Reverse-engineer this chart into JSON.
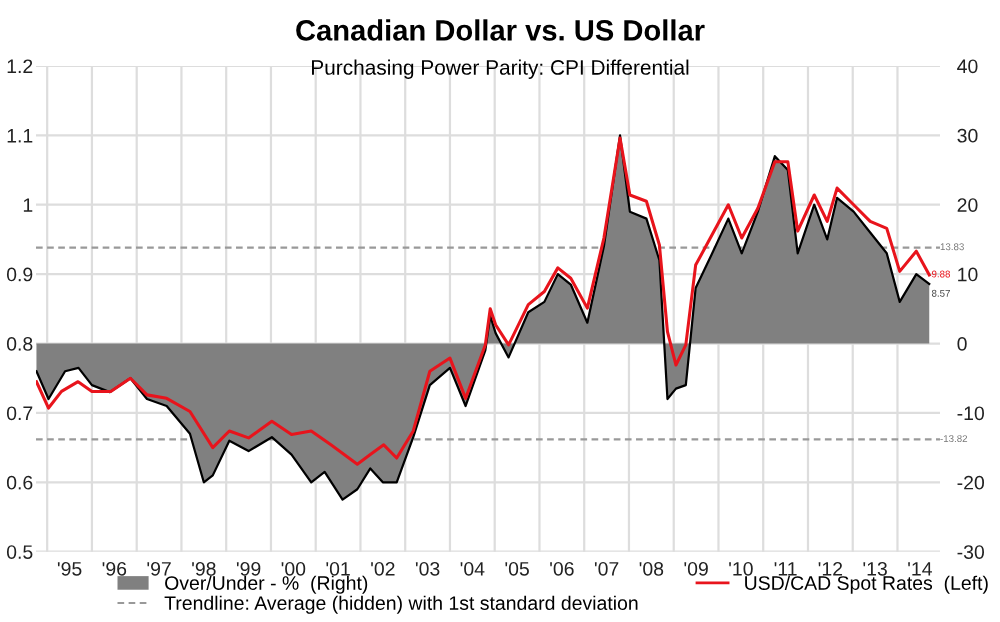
{
  "chart_data": {
    "type": "line",
    "title": "Canadian Dollar vs. US Dollar",
    "subtitle": "Purchasing Power Parity: CPI Differential",
    "series": [
      {
        "name": "Over/Under - %  (Right)",
        "type": "area",
        "axis": "y2",
        "color": "#808080",
        "x": [
          1994.26,
          1994.53,
          1994.9,
          1995.2,
          1995.5,
          1995.9,
          1996.36,
          1996.73,
          1997.17,
          1997.69,
          1998.0,
          1998.2,
          1998.57,
          1999.0,
          1999.52,
          1999.96,
          2000.4,
          2000.7,
          2001.1,
          2001.43,
          2001.72,
          2002.0,
          2002.31,
          2002.68,
          2003.05,
          2003.5,
          2003.85,
          2004.29,
          2004.4,
          2004.52,
          2004.81,
          2005.25,
          2005.61,
          2005.91,
          2006.2,
          2006.57,
          2006.94,
          2007.3,
          2007.52,
          2007.89,
          2008.18,
          2008.36,
          2008.55,
          2008.77,
          2008.99,
          2009.36,
          2009.72,
          2010.02,
          2010.38,
          2010.76,
          2011.05,
          2011.27,
          2011.64,
          2011.93,
          2012.15,
          2012.52,
          2012.89,
          2013.26,
          2013.55,
          2013.92,
          2014.21
        ],
        "values": [
          -4,
          -8,
          -4,
          -3.5,
          -6,
          -7,
          -5,
          -8,
          -9,
          -13,
          -20,
          -19,
          -14,
          -15.5,
          -13.5,
          -16,
          -20,
          -18.5,
          -22.5,
          -21,
          -18,
          -20,
          -20,
          -13.5,
          -6,
          -3.5,
          -9,
          -1,
          4,
          1.5,
          -2,
          4.5,
          6,
          10,
          8.5,
          3,
          14,
          30,
          19,
          18,
          12,
          -8,
          -6.5,
          -6,
          8,
          13,
          18,
          13,
          19,
          27,
          25,
          13,
          20,
          15,
          21,
          19,
          16,
          13,
          6,
          10,
          8.57
        ],
        "value_labels": [
          null,
          null,
          null,
          null,
          null,
          null,
          null,
          null,
          null,
          null,
          null,
          null,
          null,
          null,
          null,
          null,
          null,
          null,
          null,
          null,
          null,
          null,
          null,
          null,
          null,
          null,
          null,
          null,
          null,
          null,
          null,
          null,
          null,
          null,
          null,
          null,
          null,
          null,
          null,
          null,
          null,
          null,
          null,
          null,
          null,
          null,
          null,
          null,
          null,
          null,
          null,
          null,
          null,
          null,
          null,
          null,
          null,
          null,
          null,
          null,
          "8.57"
        ]
      },
      {
        "name": "USD/CAD Spot Rates  (Left)",
        "color": "#e8141c",
        "x": [
          1994.26,
          1994.53,
          1994.82,
          1995.19,
          1995.5,
          1995.92,
          1996.36,
          1996.73,
          1997.17,
          1997.69,
          1998.2,
          1998.57,
          1999.0,
          1999.52,
          1999.96,
          2000.4,
          2000.84,
          2001.43,
          2001.72,
          2002.02,
          2002.31,
          2002.68,
          2003.05,
          2003.5,
          2003.85,
          2004.29,
          2004.4,
          2004.52,
          2004.81,
          2005.25,
          2005.61,
          2005.91,
          2006.2,
          2006.57,
          2006.94,
          2007.3,
          2007.52,
          2007.89,
          2008.18,
          2008.36,
          2008.55,
          2008.77,
          2008.99,
          2009.36,
          2009.72,
          2010.02,
          2010.38,
          2010.76,
          2011.05,
          2011.27,
          2011.64,
          2011.93,
          2012.15,
          2012.52,
          2012.89,
          2013.26,
          2013.55,
          2013.92,
          2014.21
        ],
        "values": [
          0.745,
          0.707,
          0.731,
          0.745,
          0.731,
          0.731,
          0.75,
          0.726,
          0.721,
          0.702,
          0.65,
          0.674,
          0.664,
          0.688,
          0.669,
          0.674,
          0.654,
          0.626,
          0.64,
          0.654,
          0.635,
          0.674,
          0.76,
          0.779,
          0.721,
          0.798,
          0.85,
          0.827,
          0.798,
          0.856,
          0.875,
          0.909,
          0.894,
          0.851,
          0.952,
          1.096,
          1.014,
          1.005,
          0.942,
          0.817,
          0.769,
          0.798,
          0.913,
          0.957,
          1.0,
          0.952,
          0.995,
          1.062,
          1.062,
          0.962,
          1.014,
          0.976,
          1.024,
          1.0,
          0.976,
          0.966,
          0.904,
          0.933,
          0.899
        ]
      }
    ],
    "xlim": [
      1994.25,
      2014.45
    ],
    "xticks": [
      {
        "value": 1994.5,
        "label": null
      },
      {
        "value": 1995,
        "label": "'95"
      },
      {
        "value": 1995.5,
        "label": null
      },
      {
        "value": 1996,
        "label": "'96"
      },
      {
        "value": 1996.5,
        "label": null
      },
      {
        "value": 1997,
        "label": "'97"
      },
      {
        "value": 1997.5,
        "label": null
      },
      {
        "value": 1998,
        "label": "'98"
      },
      {
        "value": 1998.5,
        "label": null
      },
      {
        "value": 1999,
        "label": "'99"
      },
      {
        "value": 1999.5,
        "label": null
      },
      {
        "value": 2000,
        "label": "'00"
      },
      {
        "value": 2000.5,
        "label": null
      },
      {
        "value": 2001,
        "label": "'01"
      },
      {
        "value": 2001.5,
        "label": null
      },
      {
        "value": 2002,
        "label": "'02"
      },
      {
        "value": 2002.5,
        "label": null
      },
      {
        "value": 2003,
        "label": "'03"
      },
      {
        "value": 2003.5,
        "label": null
      },
      {
        "value": 2004,
        "label": "'04"
      },
      {
        "value": 2004.5,
        "label": null
      },
      {
        "value": 2005,
        "label": "'05"
      },
      {
        "value": 2005.5,
        "label": null
      },
      {
        "value": 2006,
        "label": "'06"
      },
      {
        "value": 2006.5,
        "label": null
      },
      {
        "value": 2007,
        "label": "'07"
      },
      {
        "value": 2007.5,
        "label": null
      },
      {
        "value": 2008,
        "label": "'08"
      },
      {
        "value": 2008.5,
        "label": null
      },
      {
        "value": 2009,
        "label": "'09"
      },
      {
        "value": 2009.5,
        "label": null
      },
      {
        "value": 2010,
        "label": "'10"
      },
      {
        "value": 2010.5,
        "label": null
      },
      {
        "value": 2011,
        "label": "'11"
      },
      {
        "value": 2011.5,
        "label": null
      },
      {
        "value": 2012,
        "label": "'12"
      },
      {
        "value": 2012.5,
        "label": null
      },
      {
        "value": 2013,
        "label": "'13"
      },
      {
        "value": 2013.5,
        "label": null
      },
      {
        "value": 2014,
        "label": "'14"
      }
    ],
    "ylim": [
      0.5,
      1.2
    ],
    "yticks": [
      0.5,
      0.6,
      0.7,
      0.8,
      0.9,
      1,
      1.1,
      1.2
    ],
    "y2lim": [
      -30,
      40
    ],
    "y2ticks": [
      -30,
      -20,
      -10,
      0,
      10,
      20,
      30,
      40
    ],
    "ref_lines": [
      {
        "axis": "y2",
        "value": 13.83,
        "label": "13.83",
        "color": "#999999",
        "line_style": "dashed"
      },
      {
        "axis": "y2",
        "value": -13.82,
        "label": "-13.82",
        "color": "#999999",
        "line_style": "dashed"
      }
    ],
    "annotations": [
      "9.88",
      "Trendline: Average (hidden) with 1st standard deviation"
    ],
    "grid": true,
    "legend": "bottom"
  }
}
